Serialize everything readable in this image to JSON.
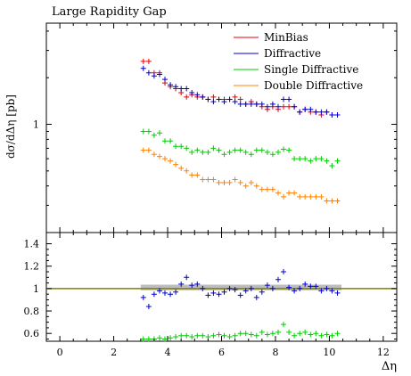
{
  "chart_data": [
    {
      "type": "scatter",
      "title": "Large Rapidity Gap",
      "ylabel": "dσ/dΔη [pb]",
      "yscale": "log",
      "y_ticks": [
        {
          "value": 1,
          "label": "1"
        }
      ],
      "ylim": [
        0.2,
        4.5
      ],
      "x": [
        3.1,
        3.3,
        3.5,
        3.7,
        3.9,
        4.1,
        4.3,
        4.5,
        4.7,
        4.9,
        5.1,
        5.3,
        5.5,
        5.7,
        5.9,
        6.1,
        6.3,
        6.5,
        6.7,
        6.9,
        7.1,
        7.3,
        7.5,
        7.7,
        7.9,
        8.1,
        8.3,
        8.5,
        8.7,
        8.9,
        9.1,
        9.3,
        9.5,
        9.7,
        9.9,
        10.1,
        10.3
      ],
      "legend_position": "top-right",
      "series": [
        {
          "name": "MinBias",
          "color": "#e8000b",
          "values": [
            2.55,
            2.55,
            2.15,
            2.15,
            1.85,
            1.75,
            1.7,
            1.6,
            1.5,
            1.55,
            1.5,
            1.5,
            1.45,
            1.5,
            1.45,
            1.45,
            1.45,
            1.5,
            1.45,
            1.35,
            1.4,
            1.35,
            1.3,
            1.25,
            1.3,
            1.25,
            1.3,
            1.3,
            1.3,
            1.2,
            1.25,
            1.2,
            1.2,
            1.15,
            1.2,
            1.15,
            1.15
          ]
        },
        {
          "name": "Diffractive",
          "color": "#0000cc",
          "values": [
            2.3,
            2.15,
            2.05,
            2.1,
            1.95,
            1.8,
            1.75,
            1.7,
            1.7,
            1.6,
            1.55,
            1.5,
            1.45,
            1.4,
            1.45,
            1.4,
            1.45,
            1.4,
            1.35,
            1.35,
            1.35,
            1.35,
            1.35,
            1.3,
            1.35,
            1.3,
            1.45,
            1.45,
            1.3,
            1.2,
            1.25,
            1.25,
            1.2,
            1.2,
            1.2,
            1.15,
            1.15
          ]
        },
        {
          "name": "Single Diffractive",
          "color": "#00cc00",
          "values": [
            0.9,
            0.9,
            0.85,
            0.88,
            0.78,
            0.78,
            0.72,
            0.72,
            0.7,
            0.66,
            0.68,
            0.66,
            0.66,
            0.7,
            0.68,
            0.64,
            0.66,
            0.68,
            0.68,
            0.66,
            0.64,
            0.68,
            0.68,
            0.66,
            0.64,
            0.66,
            0.69,
            0.68,
            0.6,
            0.6,
            0.6,
            0.58,
            0.6,
            0.6,
            0.58,
            0.54,
            0.58
          ]
        },
        {
          "name": "Double Diffractive",
          "color": "#ff8000",
          "values": [
            0.68,
            0.68,
            0.64,
            0.62,
            0.6,
            0.58,
            0.55,
            0.52,
            0.5,
            0.47,
            0.47,
            0.44,
            0.44,
            0.44,
            0.42,
            0.42,
            0.42,
            0.44,
            0.42,
            0.4,
            0.42,
            0.4,
            0.38,
            0.38,
            0.38,
            0.36,
            0.34,
            0.36,
            0.36,
            0.34,
            0.34,
            0.34,
            0.34,
            0.34,
            0.32,
            0.32,
            0.32
          ]
        }
      ]
    },
    {
      "type": "scatter",
      "xlabel": "Δη",
      "xlim": [
        -0.5,
        12.5
      ],
      "x_ticks": [
        0,
        2,
        4,
        6,
        8,
        10,
        12
      ],
      "ylim": [
        0.53,
        1.5
      ],
      "y_ticks": [
        {
          "value": 0.6,
          "label": "0.6"
        },
        {
          "value": 0.8,
          "label": "0.8"
        },
        {
          "value": 1.0,
          "label": "1"
        },
        {
          "value": 1.2,
          "label": "1.2"
        },
        {
          "value": 1.4,
          "label": "1.4"
        }
      ],
      "reference_line": {
        "value": 1,
        "color": "#808000"
      },
      "band": {
        "x_range": [
          3.0,
          10.45
        ],
        "y_range": [
          0.985,
          1.035
        ]
      },
      "x": [
        3.1,
        3.3,
        3.5,
        3.7,
        3.9,
        4.1,
        4.3,
        4.5,
        4.7,
        4.9,
        5.1,
        5.3,
        5.5,
        5.7,
        5.9,
        6.1,
        6.3,
        6.5,
        6.7,
        6.9,
        7.1,
        7.3,
        7.5,
        7.7,
        7.9,
        8.1,
        8.3,
        8.5,
        8.7,
        8.9,
        9.1,
        9.3,
        9.5,
        9.7,
        9.9,
        10.1,
        10.3
      ],
      "series": [
        {
          "color": "#0000cc",
          "values": [
            0.92,
            0.84,
            0.95,
            0.98,
            0.96,
            0.95,
            0.97,
            1.04,
            1.1,
            1.03,
            1.04,
            1.0,
            0.94,
            0.96,
            0.95,
            0.97,
            1.0,
            0.99,
            0.94,
            0.98,
            1.0,
            0.92,
            0.97,
            1.03,
            1.0,
            1.08,
            1.15,
            1.01,
            0.98,
            1.0,
            1.04,
            1.02,
            1.02,
            0.98,
            1.0,
            0.98,
            0.96
          ]
        },
        {
          "color": "#00cc00",
          "values": [
            0.55,
            0.55,
            0.55,
            0.56,
            0.55,
            0.56,
            0.57,
            0.58,
            0.58,
            0.57,
            0.58,
            0.58,
            0.57,
            0.58,
            0.59,
            0.58,
            0.57,
            0.58,
            0.6,
            0.6,
            0.59,
            0.58,
            0.61,
            0.59,
            0.6,
            0.61,
            0.68,
            0.61,
            0.58,
            0.6,
            0.61,
            0.59,
            0.6,
            0.58,
            0.59,
            0.58,
            0.6
          ]
        }
      ]
    }
  ]
}
